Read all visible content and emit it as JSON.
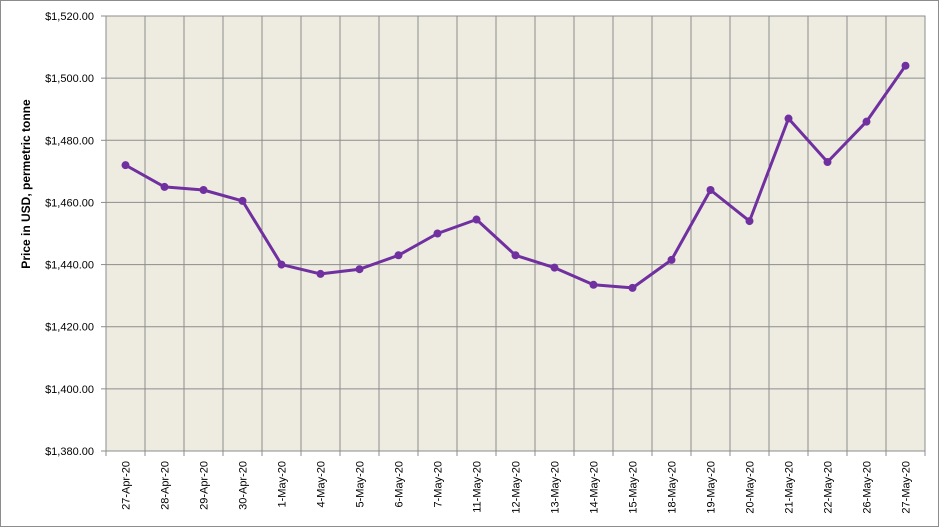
{
  "chart_data": {
    "type": "line",
    "title": "",
    "xlabel": "",
    "ylabel": "Price in USD, permetric tonne",
    "ylim": [
      1380,
      1520
    ],
    "y_ticks": [
      1380,
      1400,
      1420,
      1440,
      1460,
      1480,
      1500,
      1520
    ],
    "y_tick_labels": [
      "$1,380.00",
      "$1,400.00",
      "$1,420.00",
      "$1,440.00",
      "$1,460.00",
      "$1,480.00",
      "$1,500.00",
      "$1,520.00"
    ],
    "grid": true,
    "legend": "none",
    "categories": [
      "27-Apr-20",
      "28-Apr-20",
      "29-Apr-20",
      "30-Apr-20",
      "1-May-20",
      "4-May-20",
      "5-May-20",
      "6-May-20",
      "7-May-20",
      "11-May-20",
      "12-May-20",
      "13-May-20",
      "14-May-20",
      "15-May-20",
      "18-May-20",
      "19-May-20",
      "20-May-20",
      "21-May-20",
      "22-May-20",
      "26-May-20",
      "27-May-20"
    ],
    "series": [
      {
        "values": [
          1472,
          1465,
          1464,
          1460.5,
          1440,
          1437,
          1438.5,
          1443,
          1450,
          1454.5,
          1443,
          1439,
          1433.5,
          1432.5,
          1441.5,
          1464,
          1454,
          1487,
          1473,
          1486,
          1504
        ]
      }
    ],
    "colors": {
      "line": "#7030A0",
      "plot_background": "#EEECE1",
      "grid": "#8C8C8C"
    }
  }
}
